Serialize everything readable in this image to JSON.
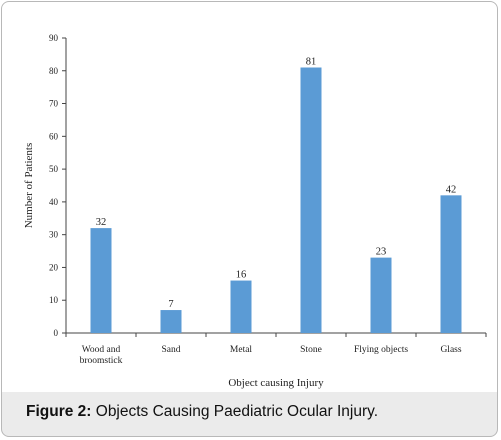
{
  "caption": {
    "label": "Figure 2:",
    "text": " Objects Causing Paediatric Ocular Injury."
  },
  "chart_data": {
    "type": "bar",
    "categories": [
      [
        "Wood and",
        "broomstick"
      ],
      [
        "Sand"
      ],
      [
        "Metal"
      ],
      [
        "Stone"
      ],
      [
        "Flying objects"
      ],
      [
        "Glass"
      ]
    ],
    "values": [
      32,
      7,
      16,
      81,
      23,
      42
    ],
    "xlabel": "Object causing Injury",
    "ylabel": "Number of Patients",
    "ylim": [
      0,
      90
    ],
    "yticks": [
      0,
      10,
      20,
      30,
      40,
      50,
      60,
      70,
      80,
      90
    ],
    "bar_color": "#5b9bd5",
    "data_labels": true,
    "grid": false,
    "legend": "none"
  }
}
